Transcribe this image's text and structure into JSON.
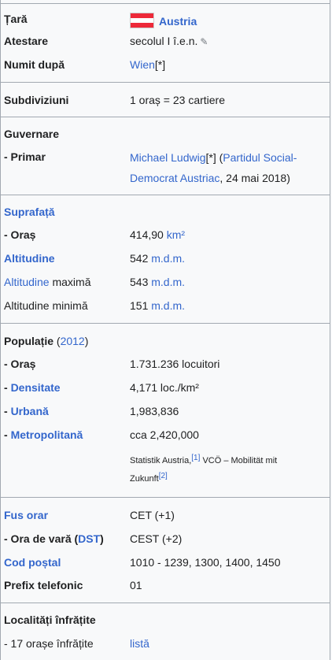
{
  "rows": {
    "tara": {
      "label": "Țară",
      "value": "Austria"
    },
    "atestare": {
      "label": "Atestare",
      "value": "secolul I î.e.n."
    },
    "numit": {
      "label": "Numit după",
      "value": "Wien",
      "ref": "[*]"
    },
    "subdiv": {
      "label": "Subdiviziuni",
      "value": "1 oraș = 23 cartiere"
    },
    "guvernare": {
      "label": "Guvernare"
    },
    "primar": {
      "label": " - Primar",
      "name": "Michael Ludwig",
      "ref": "[*]",
      "party_open": " (",
      "party1": "Partidul Social-",
      "party2": "Democrat Austriac",
      "date": ", 24 mai 2018)"
    },
    "suprafata": {
      "label": "Suprafață"
    },
    "oras_supr": {
      "label": " - Oraș",
      "num": "414,90 ",
      "unit": "km²"
    },
    "altitudine": {
      "label": "Altitudine",
      "num": "542 ",
      "unit": "m.d.m."
    },
    "alt_max": {
      "label1": "Altitudine",
      "label2": " maximă",
      "num": "543 ",
      "unit": "m.d.m."
    },
    "alt_min": {
      "label": "Altitudine minimă",
      "num": "151 ",
      "unit": "m.d.m."
    },
    "populatie": {
      "label": "Populație",
      "year_open": " (",
      "year": "2012",
      "year_close": ")"
    },
    "pop_oras": {
      "label": " - Oraș",
      "value": "1.731.236 locuitori"
    },
    "densitate": {
      "prefix": " - ",
      "label": "Densitate",
      "value": "4,171 loc./km²"
    },
    "urbana": {
      "prefix": " - ",
      "label": "Urbană",
      "value": "1,983,836"
    },
    "metro": {
      "prefix": " - ",
      "label": "Metropolitană",
      "value": "cca 2,420,000"
    },
    "sources": {
      "line1": "Statistik Austria,",
      "ref1": "[1]",
      "line1b": " VCÖ – Mobilität mit",
      "line2": "Zukunft",
      "ref2": "[2]"
    },
    "fus": {
      "label": "Fus orar",
      "value": "CET (+1)"
    },
    "vara": {
      "label1": " - Ora de vară (",
      "label2": "DST",
      "label3": ")",
      "value": "CEST (+2)"
    },
    "postal": {
      "label": "Cod poștal",
      "value": "1010 - 1239, 1300, 1400, 1450"
    },
    "prefix": {
      "label": "Prefix telefonic",
      "value": "01"
    },
    "localitati": {
      "label": "Localități înfrățite"
    },
    "orase17": {
      "label": " - 17 orașe înfrățite",
      "value": "listă"
    }
  },
  "icons": {
    "pencil": "✎"
  }
}
